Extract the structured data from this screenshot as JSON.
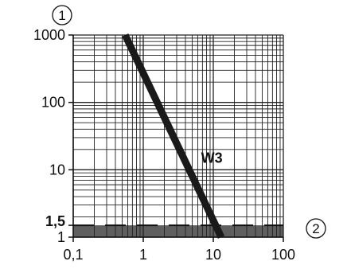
{
  "chart_data": {
    "type": "line",
    "x_scale": "log",
    "y_scale": "log",
    "xlim": [
      0.1,
      100
    ],
    "ylim": [
      1,
      1000
    ],
    "grid": true,
    "x_tick_labels": [
      "0,1",
      "1",
      "10",
      "100"
    ],
    "y_tick_labels": [
      "1",
      "10",
      "100",
      "1000"
    ],
    "y_extra_label": "1,5",
    "markers": [
      "1",
      "2"
    ],
    "threshold": {
      "y": 1.5
    },
    "series": [
      {
        "name": "W3",
        "x": [
          0.55,
          13
        ],
        "y": [
          1000,
          1
        ]
      }
    ],
    "colors": {
      "line": "#1a1a1a",
      "grid": "#222222",
      "band": "#5f5f5f",
      "dash": "#111111"
    }
  }
}
